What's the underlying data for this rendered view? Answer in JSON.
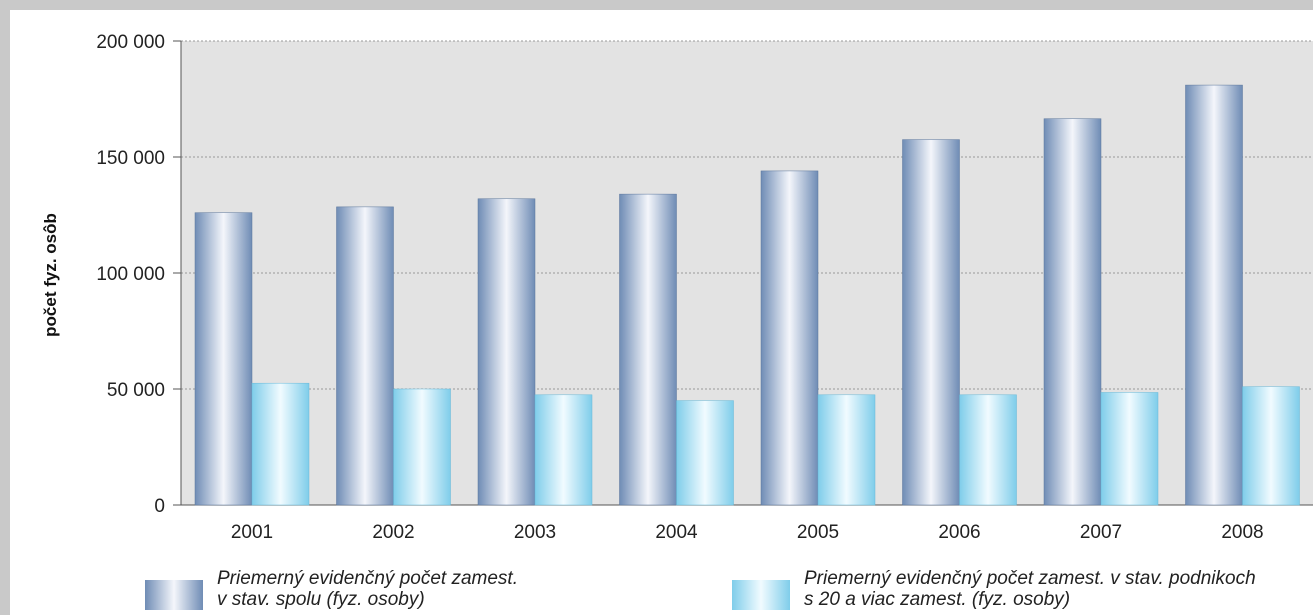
{
  "chart_data": {
    "type": "bar",
    "categories": [
      "2001",
      "2002",
      "2003",
      "2004",
      "2005",
      "2006",
      "2007",
      "2008"
    ],
    "series": [
      {
        "name": "Priemerný evidenčný počet zamest. v stav. spolu (fyz. osoby)",
        "name_lines": [
          "Priemerný evidenčný počet zamest.",
          "v stav. spolu (fyz. osoby)"
        ],
        "values": [
          126000,
          128500,
          132000,
          134000,
          144000,
          157500,
          166500,
          181000
        ],
        "color": "#8aa3c6"
      },
      {
        "name": "Priemerný evidenčný počet zamest. v stav. podnikoch s 20 a viac zamest. (fyz. osoby)",
        "name_lines": [
          "Priemerný evidenčný počet zamest. v stav. podnikoch",
          "s 20 a viac zamest. (fyz. osoby)"
        ],
        "values": [
          52500,
          50000,
          47500,
          45000,
          47500,
          47500,
          48500,
          51000
        ],
        "color": "#9fdcf2"
      }
    ],
    "ylabel": "počet fyz. osôb",
    "xlabel": "",
    "ylim": [
      0,
      200000
    ],
    "yticks": [
      0,
      50000,
      100000,
      150000,
      200000
    ],
    "ytick_labels": [
      "0",
      "50 000",
      "100 000",
      "150 000",
      "200 000"
    ],
    "grid": true,
    "grid_style": "dotted",
    "legend": "bottom",
    "plot_background": "#e3e3e3"
  }
}
